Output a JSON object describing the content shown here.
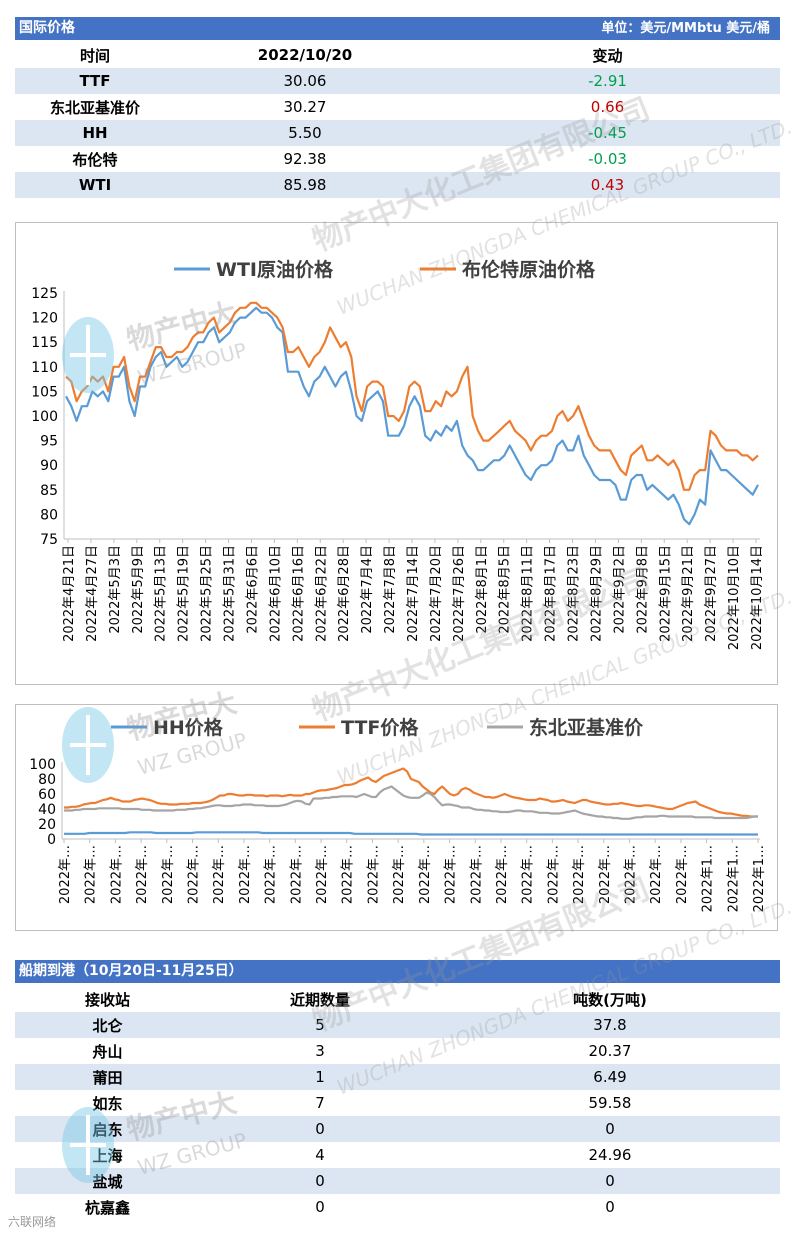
{
  "price_section": {
    "title": "国际价格",
    "unit": "单位：美元/MMbtu  美元/桶",
    "headers": [
      "时间",
      "2022/10/20",
      "变动"
    ],
    "rows": [
      {
        "name": "TTF",
        "value": "30.06",
        "change": "-2.91",
        "dir": "down"
      },
      {
        "name": "东北亚基准价",
        "value": "30.27",
        "change": "0.66",
        "dir": "up"
      },
      {
        "name": "HH",
        "value": "5.50",
        "change": "-0.45",
        "dir": "down"
      },
      {
        "name": "布伦特",
        "value": "92.38",
        "change": "-0.03",
        "dir": "down"
      },
      {
        "name": "WTI",
        "value": "85.98",
        "change": "0.43",
        "dir": "up"
      }
    ]
  },
  "chart_data": [
    {
      "type": "line",
      "title": "",
      "ylim": [
        75,
        125
      ],
      "yticks": [
        75,
        80,
        85,
        90,
        95,
        100,
        105,
        110,
        115,
        120,
        125
      ],
      "xtick_labels": [
        "2022年4月21日",
        "2022年4月27日",
        "2022年5月3日",
        "2022年5月9日",
        "2022年5月13日",
        "2022年5月19日",
        "2022年5月25日",
        "2022年5月31日",
        "2022年6月6日",
        "2022年6月10日",
        "2022年6月16日",
        "2022年6月22日",
        "2022年6月28日",
        "2022年7月4日",
        "2022年7月8日",
        "2022年7月14日",
        "2022年7月20日",
        "2022年7月26日",
        "2022年8月1日",
        "2022年8月5日",
        "2022年8月11日",
        "2022年8月17日",
        "2022年8月23日",
        "2022年8月29日",
        "2022年9月2日",
        "2022年9月8日",
        "2022年9月15日",
        "2022年9月21日",
        "2022年9月27日",
        "2022年10月10日",
        "2022年10月14日"
      ],
      "legend_position": "top",
      "series": [
        {
          "name": "WTI原油价格",
          "color": "#5b9bd5",
          "values": [
            104,
            102,
            99,
            102,
            102,
            105,
            104,
            105,
            103,
            108,
            108,
            110,
            103,
            100,
            106,
            106,
            110,
            112,
            113,
            110,
            111,
            112,
            110,
            111,
            113,
            115,
            115,
            117,
            118,
            115,
            116,
            117,
            119,
            120,
            120,
            121,
            122,
            121,
            121,
            120,
            118,
            117,
            109,
            109,
            109,
            106,
            104,
            107,
            108,
            110,
            108,
            106,
            108,
            109,
            105,
            100,
            99,
            103,
            104,
            105,
            103,
            96,
            96,
            96,
            98,
            102,
            104,
            102,
            96,
            95,
            97,
            96,
            98,
            97,
            99,
            94,
            92,
            91,
            89,
            89,
            90,
            91,
            91,
            92,
            94,
            92,
            90,
            88,
            87,
            89,
            90,
            90,
            91,
            94,
            95,
            93,
            93,
            96,
            92,
            90,
            88,
            87,
            87,
            87,
            86,
            83,
            83,
            87,
            88,
            88,
            85,
            86,
            85,
            84,
            83,
            84,
            82,
            79,
            78,
            80,
            83,
            82,
            93,
            91,
            89,
            89,
            88,
            87,
            86,
            85,
            84,
            86
          ]
        },
        {
          "name": "布伦特原油价格",
          "color": "#ed7d31",
          "values": [
            108,
            107,
            103,
            105,
            106,
            108,
            107,
            108,
            105,
            110,
            110,
            112,
            106,
            103,
            108,
            108,
            111,
            114,
            114,
            112,
            112,
            113,
            113,
            114,
            116,
            117,
            117,
            119,
            120,
            117,
            118,
            119,
            121,
            122,
            122,
            123,
            123,
            122,
            122,
            121,
            120,
            118,
            113,
            113,
            114,
            112,
            110,
            112,
            113,
            115,
            118,
            116,
            114,
            115,
            112,
            104,
            101,
            106,
            107,
            107,
            106,
            100,
            100,
            99,
            101,
            106,
            107,
            106,
            101,
            101,
            103,
            102,
            105,
            104,
            105,
            108,
            110,
            100,
            97,
            95,
            95,
            96,
            97,
            98,
            99,
            97,
            96,
            95,
            93,
            95,
            96,
            96,
            97,
            100,
            101,
            99,
            100,
            102,
            99,
            96,
            94,
            93,
            93,
            93,
            91,
            89,
            88,
            92,
            93,
            94,
            91,
            91,
            92,
            91,
            90,
            91,
            89,
            85,
            85,
            88,
            89,
            89,
            97,
            96,
            94,
            93,
            93,
            93,
            92,
            92,
            91,
            92
          ]
        }
      ]
    },
    {
      "type": "line",
      "title": "",
      "ylim": [
        0,
        100
      ],
      "yticks": [
        0,
        20,
        40,
        60,
        80,
        100
      ],
      "xtick_labels": [
        "2022年…",
        "2022年…",
        "2022年…",
        "2022年…",
        "2022年…",
        "2022年…",
        "2022年…",
        "2022年…",
        "2022年…",
        "2022年…",
        "2022年…",
        "2022年…",
        "2022年…",
        "2022年…",
        "2022年…",
        "2022年…",
        "2022年…",
        "2022年…",
        "2022年…",
        "2022年…",
        "2022年…",
        "2022年…",
        "2022年…",
        "2022年…",
        "2022年…",
        "2022年1…",
        "2022年1…",
        "2022年1…"
      ],
      "legend_position": "top",
      "series": [
        {
          "name": "HH价格",
          "color": "#5b9bd5",
          "values": [
            7,
            7,
            7,
            7,
            7,
            8,
            8,
            8,
            8,
            8,
            8,
            8,
            8,
            9,
            9,
            9,
            9,
            9,
            8,
            8,
            8,
            8,
            8,
            8,
            8,
            8,
            9,
            9,
            9,
            9,
            9,
            9,
            9,
            9,
            9,
            9,
            9,
            9,
            9,
            8,
            8,
            8,
            8,
            8,
            8,
            8,
            8,
            8,
            8,
            8,
            8,
            8,
            8,
            8,
            8,
            8,
            8,
            7,
            7,
            7,
            7,
            7,
            7,
            7,
            7,
            7,
            7,
            7,
            7,
            7,
            6,
            6,
            6,
            6,
            6,
            6,
            6,
            6,
            6,
            6,
            6,
            6,
            6,
            6,
            6,
            6,
            6,
            6,
            6,
            6,
            6,
            6,
            6,
            6,
            6,
            6,
            6,
            6,
            6,
            6,
            6,
            6,
            6,
            6,
            6,
            6,
            6,
            6,
            6,
            6,
            6,
            6,
            6,
            6,
            6,
            6,
            6,
            6,
            6,
            6,
            6,
            6,
            6,
            6,
            6,
            6,
            6,
            6,
            6,
            6,
            6,
            6,
            6,
            6,
            6,
            6,
            6
          ]
        },
        {
          "name": "TTF价格",
          "color": "#ed7d31",
          "values": [
            42,
            42,
            43,
            43,
            44,
            46,
            47,
            48,
            48,
            50,
            52,
            53,
            55,
            53,
            52,
            50,
            50,
            50,
            52,
            53,
            54,
            53,
            52,
            50,
            48,
            47,
            47,
            46,
            46,
            46,
            47,
            47,
            47,
            48,
            48,
            48,
            49,
            50,
            52,
            55,
            58,
            58,
            60,
            60,
            59,
            58,
            58,
            59,
            59,
            58,
            58,
            58,
            57,
            58,
            58,
            58,
            57,
            58,
            59,
            58,
            58,
            58,
            60,
            60,
            62,
            64,
            65,
            65,
            66,
            67,
            68,
            70,
            72,
            72,
            73,
            75,
            78,
            80,
            82,
            78,
            76,
            80,
            84,
            86,
            88,
            90,
            92,
            94,
            90,
            80,
            78,
            76,
            70,
            66,
            62,
            60,
            66,
            70,
            65,
            60,
            58,
            60,
            66,
            68,
            66,
            62,
            60,
            58,
            56,
            56,
            55,
            56,
            58,
            60,
            58,
            56,
            55,
            54,
            53,
            52,
            52,
            52,
            54,
            53,
            52,
            50,
            50,
            51,
            52,
            50,
            49,
            48,
            50,
            52,
            52,
            50,
            49,
            48,
            47,
            46,
            46,
            47,
            47,
            48,
            47,
            46,
            45,
            44,
            44,
            45,
            45,
            44,
            43,
            42,
            41,
            40,
            40,
            42,
            44,
            46,
            48,
            49,
            50,
            46,
            44,
            42,
            40,
            38,
            36,
            35,
            34,
            34,
            33,
            32,
            31,
            31,
            30,
            30,
            30
          ]
        },
        {
          "name": "东北亚基准价",
          "color": "#a5a5a5",
          "values": [
            38,
            38,
            38,
            39,
            39,
            40,
            40,
            40,
            40,
            41,
            41,
            41,
            41,
            41,
            41,
            40,
            40,
            40,
            40,
            40,
            39,
            39,
            39,
            38,
            38,
            38,
            38,
            38,
            38,
            39,
            39,
            39,
            40,
            40,
            41,
            41,
            42,
            43,
            44,
            45,
            45,
            44,
            44,
            44,
            45,
            45,
            46,
            46,
            46,
            45,
            45,
            45,
            44,
            44,
            44,
            44,
            45,
            46,
            48,
            50,
            51,
            50,
            47,
            46,
            54,
            54,
            54,
            55,
            55,
            56,
            56,
            57,
            57,
            57,
            57,
            56,
            58,
            60,
            58,
            56,
            56,
            62,
            66,
            68,
            70,
            66,
            62,
            58,
            56,
            55,
            55,
            55,
            58,
            62,
            60,
            56,
            50,
            45,
            46,
            46,
            45,
            44,
            42,
            42,
            42,
            40,
            39,
            39,
            38,
            38,
            37,
            37,
            36,
            36,
            36,
            37,
            38,
            38,
            37,
            37,
            37,
            36,
            35,
            35,
            35,
            34,
            34,
            34,
            35,
            36,
            37,
            38,
            36,
            34,
            33,
            32,
            31,
            30,
            30,
            29,
            29,
            28,
            28,
            27,
            27,
            27,
            28,
            29,
            29,
            30,
            30,
            30,
            30,
            31,
            31,
            30,
            30,
            30,
            30,
            30,
            30,
            30,
            29,
            29,
            29,
            29,
            29,
            28,
            28,
            28,
            28,
            28,
            28,
            28,
            28,
            28,
            29,
            30,
            30
          ]
        }
      ]
    }
  ],
  "ship_section": {
    "title": "船期到港（10月20日-11月25日）",
    "headers": [
      "接收站",
      "近期数量",
      "吨数(万吨)"
    ],
    "rows": [
      {
        "name": "北仑",
        "count": "5",
        "tons": "37.8"
      },
      {
        "name": "舟山",
        "count": "3",
        "tons": "20.37"
      },
      {
        "name": "莆田",
        "count": "1",
        "tons": "6.49"
      },
      {
        "name": "如东",
        "count": "7",
        "tons": "59.58"
      },
      {
        "name": "启东",
        "count": "0",
        "tons": "0"
      },
      {
        "name": "上海",
        "count": "4",
        "tons": "24.96"
      },
      {
        "name": "盐城",
        "count": "0",
        "tons": "0"
      },
      {
        "name": "杭嘉鑫",
        "count": "0",
        "tons": "0"
      }
    ]
  },
  "watermark": {
    "company_cn": "物产中大化工集团有限公司",
    "company_en": "WUCHAN ZHONGDA CHEMICAL GROUP CO., LTD.",
    "logo_cn": "物产中大",
    "logo_en": "WZ GROUP"
  },
  "credit": "六联网络"
}
